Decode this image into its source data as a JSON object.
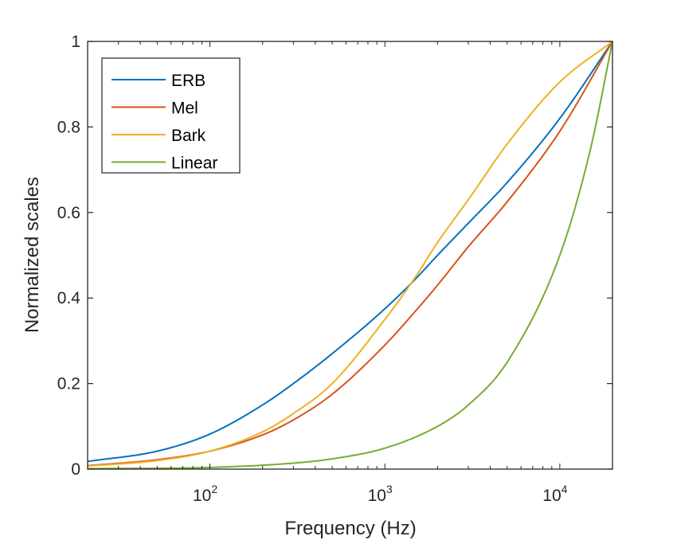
{
  "chart_data": {
    "type": "line",
    "title": "",
    "xlabel": "Frequency (Hz)",
    "ylabel": "Normalized scales",
    "x_scale": "log",
    "xlim": [
      20,
      20000
    ],
    "ylim": [
      0,
      1
    ],
    "x_ticks": [
      {
        "value": 100,
        "base": "10",
        "exponent": "2"
      },
      {
        "value": 1000,
        "base": "10",
        "exponent": "3"
      },
      {
        "value": 10000,
        "base": "10",
        "exponent": "4"
      }
    ],
    "y_ticks": [
      {
        "value": 0,
        "label": "0"
      },
      {
        "value": 0.2,
        "label": "0.2"
      },
      {
        "value": 0.4,
        "label": "0.4"
      },
      {
        "value": 0.6,
        "label": "0.6"
      },
      {
        "value": 0.8,
        "label": "0.8"
      },
      {
        "value": 1,
        "label": "1"
      }
    ],
    "grid": false,
    "legend_position": "top-left",
    "series": [
      {
        "name": "ERB",
        "color": "#0072BD",
        "points": [
          [
            20,
            0.018
          ],
          [
            50,
            0.042
          ],
          [
            100,
            0.082
          ],
          [
            200,
            0.15
          ],
          [
            300,
            0.2
          ],
          [
            500,
            0.27
          ],
          [
            1000,
            0.375
          ],
          [
            1500,
            0.445
          ],
          [
            2000,
            0.5
          ],
          [
            3000,
            0.575
          ],
          [
            5000,
            0.67
          ],
          [
            10000,
            0.82
          ],
          [
            20000,
            1.0
          ]
        ]
      },
      {
        "name": "Mel",
        "color": "#D95319",
        "points": [
          [
            20,
            0.008
          ],
          [
            50,
            0.022
          ],
          [
            100,
            0.042
          ],
          [
            200,
            0.08
          ],
          [
            300,
            0.115
          ],
          [
            500,
            0.175
          ],
          [
            1000,
            0.29
          ],
          [
            1500,
            0.37
          ],
          [
            2000,
            0.43
          ],
          [
            3000,
            0.52
          ],
          [
            5000,
            0.625
          ],
          [
            10000,
            0.79
          ],
          [
            20000,
            1.0
          ]
        ]
      },
      {
        "name": "Bark",
        "color": "#EDB120",
        "points": [
          [
            20,
            0.007
          ],
          [
            50,
            0.02
          ],
          [
            100,
            0.042
          ],
          [
            200,
            0.087
          ],
          [
            300,
            0.13
          ],
          [
            500,
            0.2
          ],
          [
            1000,
            0.35
          ],
          [
            1500,
            0.45
          ],
          [
            2000,
            0.53
          ],
          [
            3000,
            0.63
          ],
          [
            5000,
            0.76
          ],
          [
            10000,
            0.905
          ],
          [
            20000,
            1.0
          ]
        ]
      },
      {
        "name": "Linear",
        "color": "#77AC30",
        "points": [
          [
            20,
            0.001
          ],
          [
            100,
            0.004
          ],
          [
            300,
            0.014
          ],
          [
            500,
            0.024
          ],
          [
            1000,
            0.049
          ],
          [
            2000,
            0.1
          ],
          [
            3000,
            0.15
          ],
          [
            5000,
            0.25
          ],
          [
            10000,
            0.5
          ],
          [
            15000,
            0.75
          ],
          [
            20000,
            1.0
          ]
        ]
      }
    ]
  }
}
